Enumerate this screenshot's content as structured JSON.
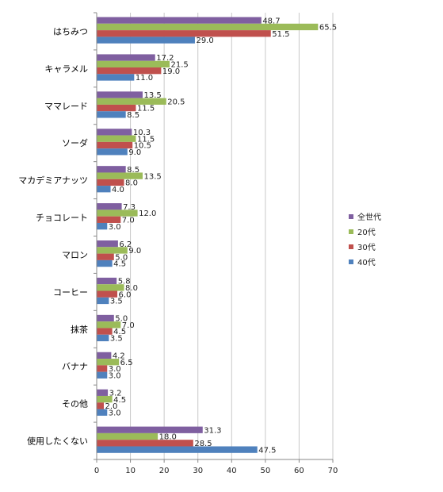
{
  "chart_data": {
    "type": "bar",
    "orientation": "horizontal",
    "categories": [
      "はちみつ",
      "キャラメル",
      "ママレード",
      "ソーダ",
      "マカデミアナッツ",
      "チョコレート",
      "マロン",
      "コーヒー",
      "抹茶",
      "バナナ",
      "その他",
      "使用したくない"
    ],
    "series": [
      {
        "name": "全世代",
        "color": "#7f5fa0",
        "values": [
          48.7,
          17.2,
          13.5,
          10.3,
          8.5,
          7.3,
          6.2,
          5.8,
          5.0,
          4.2,
          3.2,
          31.3
        ]
      },
      {
        "name": "20代",
        "color": "#9bbb59",
        "values": [
          65.5,
          21.5,
          20.5,
          11.5,
          13.5,
          12.0,
          9.0,
          8.0,
          7.0,
          6.5,
          4.5,
          18.0
        ]
      },
      {
        "name": "30代",
        "color": "#c0504d",
        "values": [
          51.5,
          19.0,
          11.5,
          10.5,
          8.0,
          7.0,
          5.0,
          6.0,
          4.5,
          3.0,
          2.0,
          28.5
        ]
      },
      {
        "name": "40代",
        "color": "#4f81bd",
        "values": [
          29.0,
          11.0,
          8.5,
          9.0,
          4.0,
          3.0,
          4.5,
          3.5,
          3.5,
          3.0,
          3.0,
          47.5
        ]
      }
    ],
    "xlim": [
      0,
      70
    ],
    "xticks": [
      "0",
      "10",
      "20",
      "30",
      "40",
      "50",
      "60",
      "70"
    ],
    "grid": true,
    "legend": "right",
    "xlabel": "",
    "ylabel": "",
    "title": ""
  }
}
